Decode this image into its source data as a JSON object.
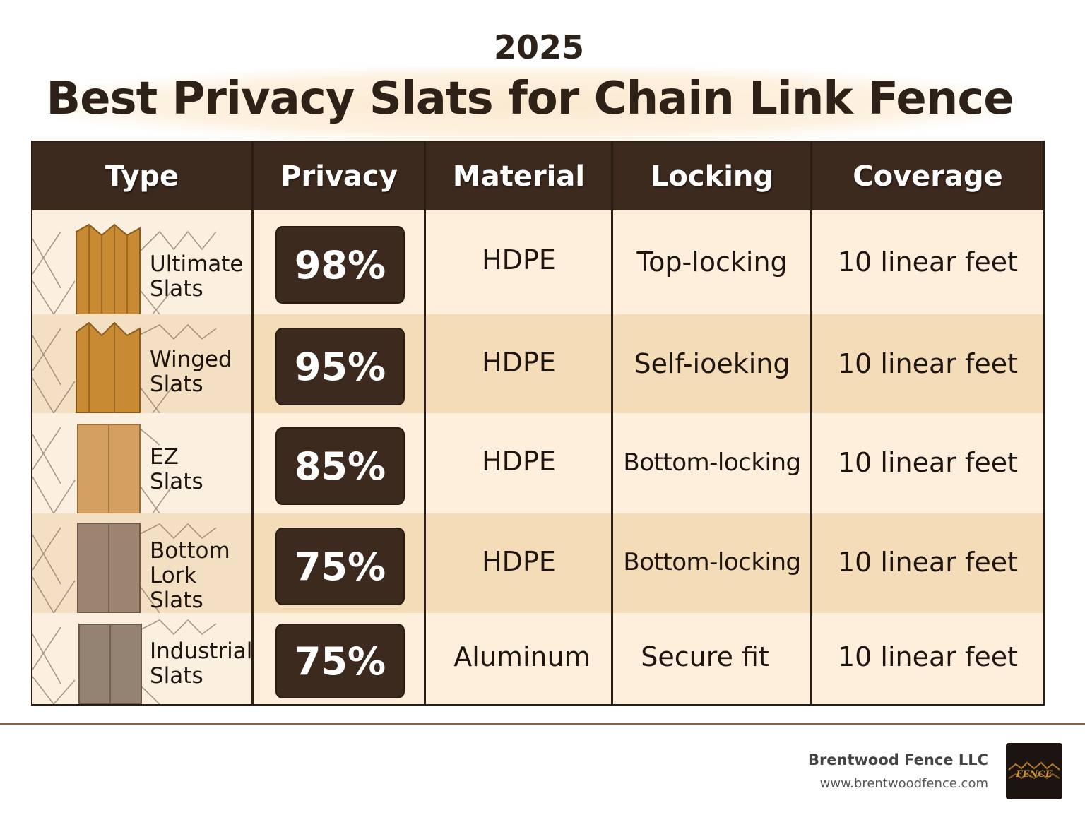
{
  "header": {
    "year": "2025",
    "title": "Best Privacy Slats for Chain Link Fence"
  },
  "table": {
    "columns": [
      "Type",
      "Privacy",
      "Material",
      "Locking",
      "Coverage"
    ],
    "rows": [
      {
        "type_line1": "Ultimate",
        "type_line2": "Slats",
        "privacy": "98%",
        "material": "HDPE",
        "locking": "Top-locking",
        "coverage": "10 linear feet",
        "slat_color": "#c98a34",
        "slat_icon": "ridged-slat-icon"
      },
      {
        "type_line1": "Winged",
        "type_line2": "Slats",
        "privacy": "95%",
        "material": "HDPE",
        "locking": "Self-ioeking",
        "coverage": "10 linear feet",
        "slat_color": "#c98a34",
        "slat_icon": "winged-slat-icon"
      },
      {
        "type_line1": "EZ",
        "type_line2": "Slats",
        "privacy": "85%",
        "material": "HDPE",
        "locking": "Bottom-locking",
        "coverage": "10 linear feet",
        "slat_color": "#d4a062",
        "slat_icon": "flat-slat-icon"
      },
      {
        "type_line1": "Bottom",
        "type_line2": "Lork Slats",
        "privacy": "75%",
        "material": "HDPE",
        "locking": "Bottom-locking",
        "coverage": "10 linear feet",
        "slat_color": "#9c8470",
        "slat_icon": "grey-slat-icon"
      },
      {
        "type_line1": "Industrial",
        "type_line2": "Slats",
        "privacy": "75%",
        "material": "Aluminum",
        "locking": "Secure fit",
        "coverage": "10 linear feet",
        "slat_color": "#948272",
        "slat_icon": "grey-slat-icon"
      }
    ]
  },
  "footer": {
    "company": "Brentwood Fence LLC",
    "website": "www.brentwoodfence.com",
    "logo_text": "FENCE"
  },
  "colors": {
    "header_bg": "#3d2a1e",
    "row_light": "#fdefdc",
    "row_dark": "#f4dcb8",
    "badge_bg": "#3d2a1e"
  }
}
